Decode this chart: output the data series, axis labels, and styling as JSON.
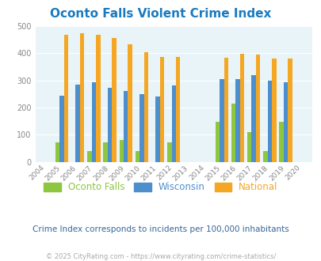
{
  "title": "Oconto Falls Violent Crime Index",
  "title_color": "#1a7abf",
  "years": [
    2004,
    2005,
    2006,
    2007,
    2008,
    2009,
    2010,
    2011,
    2012,
    2013,
    2014,
    2015,
    2016,
    2017,
    2018,
    2019,
    2020
  ],
  "oconto_falls": [
    0,
    73,
    0,
    40,
    73,
    80,
    40,
    0,
    73,
    0,
    0,
    148,
    215,
    110,
    40,
    148,
    0
  ],
  "wisconsin": [
    0,
    244,
    283,
    292,
    273,
    260,
    250,
    240,
    281,
    0,
    0,
    306,
    306,
    318,
    298,
    294,
    0
  ],
  "national": [
    0,
    469,
    474,
    467,
    455,
    432,
    405,
    387,
    387,
    0,
    0,
    384,
    398,
    394,
    380,
    380,
    0
  ],
  "color_oconto": "#8dc63f",
  "color_wisconsin": "#4d8fcc",
  "color_national": "#f5a623",
  "background_color": "#e8f4f8",
  "ylim": [
    0,
    500
  ],
  "yticks": [
    0,
    100,
    200,
    300,
    400,
    500
  ],
  "subtitle": "Crime Index corresponds to incidents per 100,000 inhabitants",
  "subtitle_color": "#336699",
  "footer": "© 2025 CityRating.com - https://www.cityrating.com/crime-statistics/",
  "footer_color": "#aaaaaa",
  "legend_labels": [
    "Oconto Falls",
    "Wisconsin",
    "National"
  ],
  "bar_width": 0.27
}
